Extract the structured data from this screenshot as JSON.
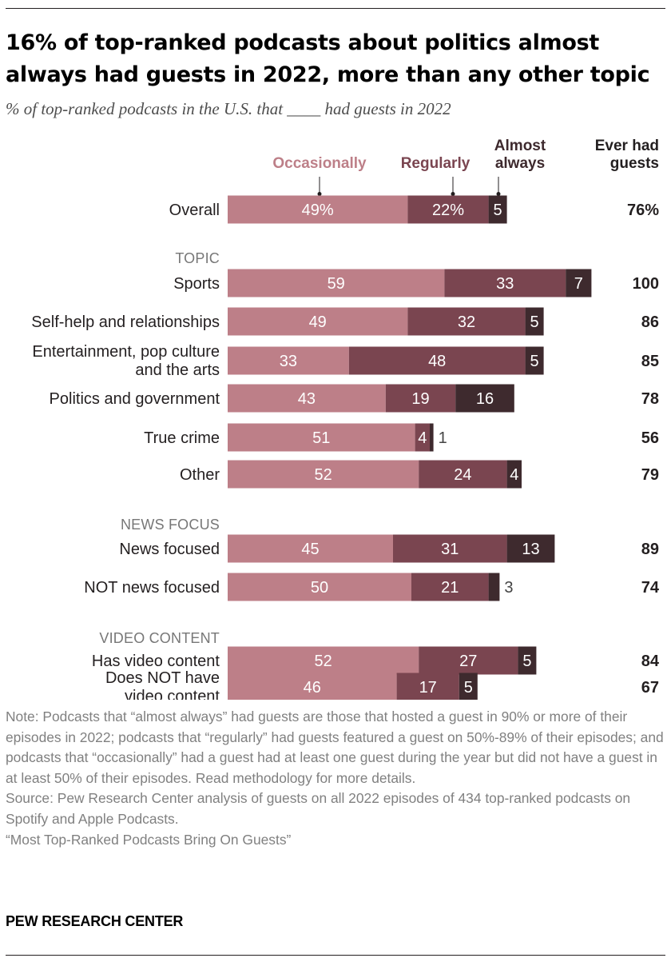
{
  "title": "16% of top-ranked podcasts about politics almost always had guests in 2022, more than any other topic",
  "subtitle": "% of top-ranked podcasts in the U.S. that ____ had guests in 2022",
  "colors": {
    "occasionally": "#bd7f88",
    "regularly": "#7a4550",
    "almost_always": "#3e2a2e"
  },
  "chart_data": {
    "type": "bar",
    "orientation": "horizontal",
    "stacked": true,
    "xlim": [
      0,
      100
    ],
    "series_names": [
      "Occasionally",
      "Regularly",
      "Almost always"
    ],
    "legend": {
      "occasionally": "Occasionally",
      "regularly": "Regularly",
      "almost_always_line1": "Almost",
      "almost_always_line2": "always",
      "total_line1": "Ever had",
      "total_line2": "guests"
    },
    "sections": [
      {
        "heading": "",
        "rows": [
          {
            "label": [
              "Overall"
            ],
            "values": [
              49,
              22,
              5
            ],
            "labels": [
              "49%",
              "22%",
              "5"
            ],
            "total": "76%"
          }
        ]
      },
      {
        "heading": "TOPIC",
        "rows": [
          {
            "label": [
              "Sports"
            ],
            "values": [
              59,
              33,
              7
            ],
            "labels": [
              "59",
              "33",
              "7"
            ],
            "total": "100"
          },
          {
            "label": [
              "Self-help and relationships"
            ],
            "values": [
              49,
              32,
              5
            ],
            "labels": [
              "49",
              "32",
              "5"
            ],
            "total": "86"
          },
          {
            "label": [
              "Entertainment, pop culture",
              "and the arts"
            ],
            "values": [
              33,
              48,
              5
            ],
            "labels": [
              "33",
              "48",
              "5"
            ],
            "total": "85"
          },
          {
            "label": [
              "Politics and government"
            ],
            "values": [
              43,
              19,
              16
            ],
            "labels": [
              "43",
              "19",
              "16"
            ],
            "total": "78"
          },
          {
            "label": [
              "True crime"
            ],
            "values": [
              51,
              4,
              1
            ],
            "labels": [
              "51",
              "4",
              "1"
            ],
            "total": "56"
          },
          {
            "label": [
              "Other"
            ],
            "values": [
              52,
              24,
              4
            ],
            "labels": [
              "52",
              "24",
              "4"
            ],
            "total": "79"
          }
        ]
      },
      {
        "heading": "NEWS FOCUS",
        "rows": [
          {
            "label": [
              "News focused"
            ],
            "values": [
              45,
              31,
              13
            ],
            "labels": [
              "45",
              "31",
              "13"
            ],
            "total": "89"
          },
          {
            "label": [
              "NOT news focused"
            ],
            "values": [
              50,
              21,
              3
            ],
            "labels": [
              "50",
              "21",
              "3"
            ],
            "total": "74"
          }
        ]
      },
      {
        "heading": "VIDEO CONTENT",
        "rows": [
          {
            "label": [
              "Has video content"
            ],
            "values": [
              52,
              27,
              5
            ],
            "labels": [
              "52",
              "27",
              "5"
            ],
            "total": "84"
          },
          {
            "label": [
              "Does NOT have",
              "video content"
            ],
            "values": [
              46,
              17,
              5
            ],
            "labels": [
              "46",
              "17",
              "5"
            ],
            "total": "67"
          }
        ]
      }
    ]
  },
  "notes": {
    "note": "Note: Podcasts that “almost always” had guests are those that hosted a guest in 90% or more of their episodes in 2022; podcasts that “regularly” had guests featured a guest on 50%-89% of their episodes; and podcasts that “occasionally” had a guest had at least one guest during the year but did not have a guest in at least 50% of their episodes. Read methodology for more details.",
    "source": "Source: Pew Research Center analysis of guests on all 2022 episodes of 434 top-ranked podcasts on Spotify and Apple Podcasts.",
    "report": "“Most Top-Ranked Podcasts Bring On Guests”"
  },
  "brand": "PEW RESEARCH CENTER"
}
